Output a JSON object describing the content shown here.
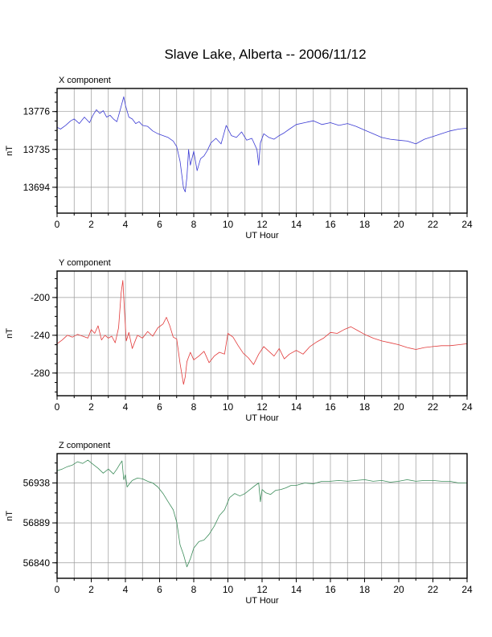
{
  "page": {
    "title": "Slave Lake, Alberta -- 2006/11/12"
  },
  "chart_data": [
    {
      "type": "line",
      "title": "X component",
      "xlabel": "UT Hour",
      "ylabel": "nT",
      "xlim": [
        0,
        24
      ],
      "ylim": [
        13666,
        13801
      ],
      "xticks": [
        0,
        2,
        4,
        6,
        8,
        10,
        12,
        14,
        16,
        18,
        20,
        22,
        24
      ],
      "yticks": [
        13694,
        13735,
        13776
      ],
      "grid": true,
      "color": "#3b3bd4",
      "series": [
        {
          "x": [
            0,
            0.2,
            0.5,
            0.8,
            1.0,
            1.3,
            1.6,
            1.9,
            2.1,
            2.3,
            2.5,
            2.7,
            2.9,
            3.1,
            3.3,
            3.5,
            3.7,
            3.9,
            4.0,
            4.2,
            4.4,
            4.6,
            4.8,
            5.0,
            5.3,
            5.6,
            5.9,
            6.2,
            6.5,
            6.8,
            7.0,
            7.2,
            7.4,
            7.5,
            7.6,
            7.7,
            7.8,
            8.0,
            8.2,
            8.4,
            8.6,
            8.8,
            9.0,
            9.3,
            9.6,
            9.9,
            10.2,
            10.5,
            10.8,
            11.1,
            11.4,
            11.7,
            11.8,
            11.9,
            12.1,
            12.4,
            12.7,
            13.0,
            13.3,
            13.6,
            14.0,
            14.5,
            15.0,
            15.5,
            16.0,
            16.5,
            17.0,
            17.5,
            18.0,
            18.5,
            19.0,
            19.5,
            20.0,
            20.5,
            21.0,
            21.5,
            22.0,
            22.5,
            23.0,
            23.5,
            24.0
          ],
          "y": [
            13759,
            13757,
            13761,
            13766,
            13768,
            13763,
            13770,
            13764,
            13772,
            13778,
            13774,
            13777,
            13770,
            13772,
            13768,
            13765,
            13778,
            13792,
            13783,
            13770,
            13768,
            13763,
            13765,
            13761,
            13760,
            13755,
            13752,
            13750,
            13748,
            13744,
            13738,
            13722,
            13693,
            13689,
            13705,
            13735,
            13718,
            13733,
            13712,
            13725,
            13728,
            13734,
            13742,
            13747,
            13741,
            13761,
            13750,
            13748,
            13754,
            13745,
            13747,
            13735,
            13718,
            13742,
            13752,
            13748,
            13746,
            13750,
            13753,
            13757,
            13762,
            13764,
            13766,
            13762,
            13764,
            13761,
            13763,
            13760,
            13756,
            13752,
            13748,
            13746,
            13745,
            13744,
            13741,
            13746,
            13749,
            13752,
            13755,
            13757,
            13758
          ]
        }
      ]
    },
    {
      "type": "line",
      "title": "Y component",
      "xlabel": "UT Hour",
      "ylabel": "nT",
      "xlim": [
        0,
        24
      ],
      "ylim": [
        -304,
        -172
      ],
      "xticks": [
        0,
        2,
        4,
        6,
        8,
        10,
        12,
        14,
        16,
        18,
        20,
        22,
        24
      ],
      "yticks": [
        -280,
        -240,
        -200
      ],
      "grid": true,
      "color": "#e23a3a",
      "series": [
        {
          "x": [
            0,
            0.3,
            0.6,
            0.9,
            1.2,
            1.5,
            1.8,
            2.0,
            2.2,
            2.4,
            2.6,
            2.8,
            3.0,
            3.2,
            3.4,
            3.6,
            3.75,
            3.85,
            3.95,
            4.05,
            4.2,
            4.4,
            4.7,
            5.0,
            5.3,
            5.6,
            5.9,
            6.2,
            6.4,
            6.6,
            6.8,
            7.0,
            7.2,
            7.4,
            7.5,
            7.6,
            7.8,
            8.0,
            8.3,
            8.6,
            8.9,
            9.2,
            9.5,
            9.8,
            10.0,
            10.3,
            10.6,
            10.9,
            11.2,
            11.5,
            11.8,
            12.1,
            12.4,
            12.7,
            13.0,
            13.3,
            13.6,
            14.0,
            14.4,
            14.8,
            15.2,
            15.6,
            16.0,
            16.4,
            16.8,
            17.2,
            17.6,
            18.0,
            18.5,
            19.0,
            19.5,
            20.0,
            20.5,
            21.0,
            21.5,
            22.0,
            22.5,
            23.0,
            23.5,
            24.0
          ],
          "y": [
            -249,
            -245,
            -240,
            -242,
            -239,
            -241,
            -243,
            -234,
            -238,
            -230,
            -245,
            -240,
            -243,
            -241,
            -248,
            -232,
            -195,
            -182,
            -215,
            -246,
            -237,
            -254,
            -240,
            -243,
            -236,
            -241,
            -232,
            -228,
            -221,
            -230,
            -242,
            -244,
            -270,
            -292,
            -284,
            -268,
            -258,
            -266,
            -262,
            -257,
            -269,
            -262,
            -258,
            -260,
            -238,
            -242,
            -251,
            -259,
            -264,
            -271,
            -260,
            -252,
            -257,
            -262,
            -254,
            -265,
            -260,
            -256,
            -260,
            -252,
            -247,
            -243,
            -237,
            -238,
            -234,
            -231,
            -235,
            -239,
            -243,
            -246,
            -248,
            -250,
            -253,
            -255,
            -253,
            -252,
            -251,
            -251,
            -250,
            -249
          ]
        }
      ]
    },
    {
      "type": "line",
      "title": "Z component",
      "xlabel": "UT Hour",
      "ylabel": "nT",
      "xlim": [
        0,
        24
      ],
      "ylim": [
        56821,
        56974
      ],
      "xticks": [
        0,
        2,
        4,
        6,
        8,
        10,
        12,
        14,
        16,
        18,
        20,
        22,
        24
      ],
      "yticks": [
        56840,
        56889,
        56938
      ],
      "grid": true,
      "color": "#3c8c5a",
      "series": [
        {
          "x": [
            0,
            0.3,
            0.6,
            0.9,
            1.2,
            1.5,
            1.8,
            2.1,
            2.4,
            2.7,
            3.0,
            3.3,
            3.5,
            3.7,
            3.8,
            3.9,
            4.0,
            4.1,
            4.2,
            4.4,
            4.7,
            5.0,
            5.3,
            5.6,
            5.9,
            6.2,
            6.5,
            6.8,
            7.0,
            7.2,
            7.4,
            7.6,
            7.8,
            8.0,
            8.3,
            8.6,
            8.9,
            9.2,
            9.5,
            9.8,
            10.1,
            10.4,
            10.7,
            11.0,
            11.3,
            11.6,
            11.8,
            11.9,
            12.0,
            12.2,
            12.5,
            12.8,
            13.1,
            13.4,
            13.7,
            14.0,
            14.5,
            15.0,
            15.5,
            16.0,
            16.5,
            17.0,
            17.5,
            18.0,
            18.5,
            19.0,
            19.5,
            20.0,
            20.5,
            21.0,
            21.5,
            22.0,
            22.5,
            23.0,
            23.5,
            24.0
          ],
          "y": [
            56953,
            56955,
            56958,
            56960,
            56964,
            56962,
            56966,
            56961,
            56956,
            56950,
            56955,
            56949,
            56955,
            56962,
            56965,
            56942,
            56948,
            56933,
            56936,
            56941,
            56944,
            56943,
            56940,
            56938,
            56933,
            56925,
            56915,
            56905,
            56890,
            56862,
            56850,
            56835,
            56845,
            56858,
            56866,
            56868,
            56875,
            56885,
            56898,
            56905,
            56920,
            56925,
            56922,
            56925,
            56930,
            56935,
            56938,
            56915,
            56930,
            56926,
            56924,
            56929,
            56930,
            56932,
            56935,
            56935,
            56938,
            56937,
            56940,
            56940,
            56941,
            56940,
            56941,
            56942,
            56940,
            56941,
            56939,
            56940,
            56942,
            56940,
            56941,
            56941,
            56940,
            56940,
            56938,
            56938
          ]
        }
      ]
    }
  ]
}
